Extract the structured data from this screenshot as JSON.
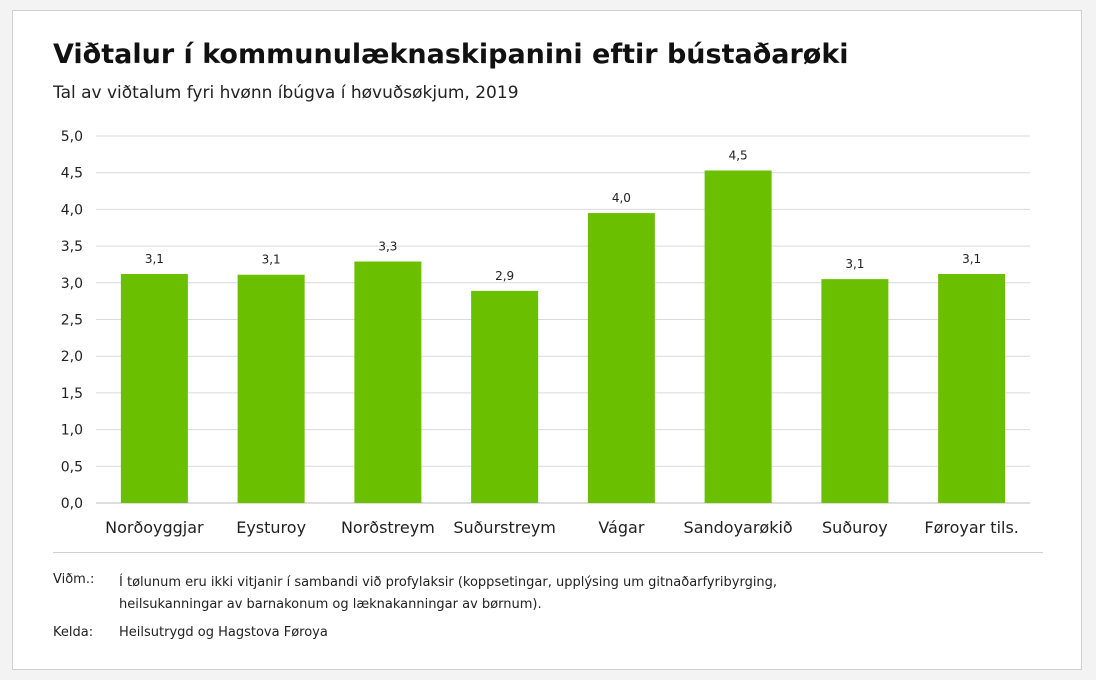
{
  "title": "Viðtalur í kommunulæknaskipanini eftir bústaðarøki",
  "subtitle": "Tal av viðtalum fyri hvønn íbúgva í høvuðsøkjum, 2019",
  "note": {
    "label": "Viðm.:",
    "text": "Í tølunum eru ikki vitjanir í sambandi við profylaksir (koppsetingar, upplýsing um gitnaðarfyribyrging, heilsukanningar av barnakonum og læknakanningar av børnum)."
  },
  "source": {
    "label": "Kelda:",
    "text": "Heilsutrygd og Hagstova Føroya"
  },
  "colors": {
    "bar": "#6abf00",
    "grid": "#d9d9d9",
    "text": "#222222"
  },
  "chart_data": {
    "type": "bar",
    "categories": [
      "Norðoyggjar",
      "Eysturoy",
      "Norðstreym",
      "Suðurstreym",
      "Vágar",
      "Sandoyarøkið",
      "Suðuroy",
      "Føroyar tils."
    ],
    "values": [
      3.12,
      3.11,
      3.29,
      2.89,
      3.95,
      4.53,
      3.05,
      3.12
    ],
    "data_labels": [
      "3,1",
      "3,1",
      "3,3",
      "2,9",
      "4,0",
      "4,5",
      "3,1",
      "3,1"
    ],
    "yticks": [
      "0,0",
      "0,5",
      "1,0",
      "1,5",
      "2,0",
      "2,5",
      "3,0",
      "3,5",
      "4,0",
      "4,5",
      "5,0"
    ],
    "ylim": [
      0,
      5
    ],
    "grid": true,
    "legend": "none"
  }
}
